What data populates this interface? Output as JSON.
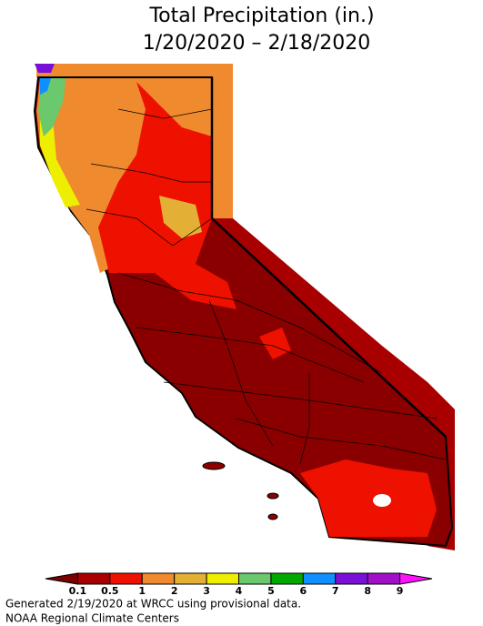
{
  "header": {
    "title_lines": [
      "Total Precipitation (in.)",
      "1/20/2020 – 2/18/2020"
    ]
  },
  "legend": {
    "colors": [
      "#7a0000",
      "#a80000",
      "#ee1100",
      "#f08a2e",
      "#e3b035",
      "#eeee00",
      "#6cc86c",
      "#00a800",
      "#1090ff",
      "#7a10d8",
      "#a010c8",
      "#ff10ff"
    ],
    "ticks": [
      0.1,
      0.5,
      1,
      2,
      3,
      4,
      5,
      6,
      7,
      8,
      9
    ]
  },
  "footer": {
    "lines": [
      "Generated 2/19/2020 at WRCC using provisional data.",
      "NOAA Regional Climate Centers"
    ]
  }
}
